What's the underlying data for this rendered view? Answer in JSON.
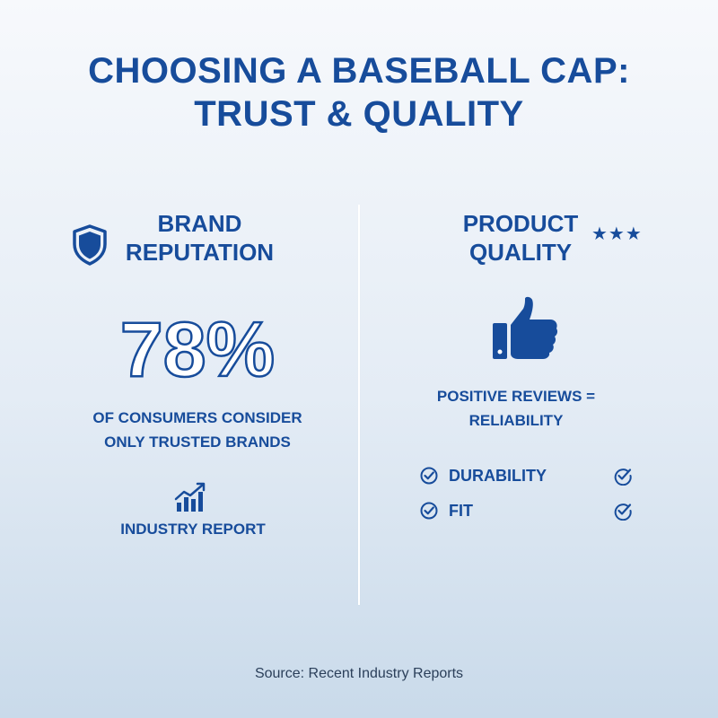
{
  "title": {
    "line1": "CHOOSING A BASEBALL CAP:",
    "line2": "TRUST & QUALITY"
  },
  "left": {
    "icon": "shield-icon",
    "heading_line1": "BRAND",
    "heading_line2": "REPUTATION",
    "stat": "78%",
    "caption_line1": "OF CONSUMERS CONSIDER",
    "caption_line2": "ONLY TRUSTED BRANDS",
    "report_icon": "growth-chart-icon",
    "report_label": "INDUSTRY REPORT"
  },
  "right": {
    "heading_line1": "PRODUCT",
    "heading_line2": "QUALITY",
    "stars": "★★★",
    "icon": "thumbs-up-icon",
    "reviews_line1": "POSITIVE REVIEWS =",
    "reviews_line2": "RELIABILITY",
    "checks": [
      {
        "label": "DURABILITY"
      },
      {
        "label": "FIT"
      }
    ]
  },
  "source": "Source: Recent Industry Reports",
  "colors": {
    "primary": "#174c9b",
    "background_top": "#f7f9fc",
    "background_bottom": "#c9daea"
  }
}
